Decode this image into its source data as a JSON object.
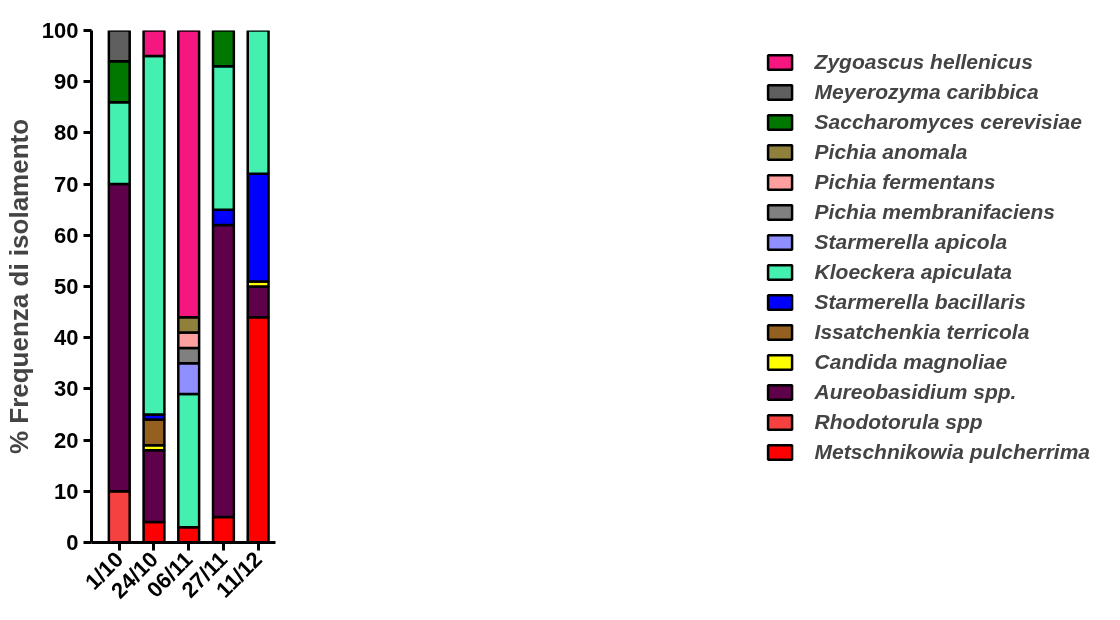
{
  "chart_data": {
    "type": "bar",
    "stacked": true,
    "ylabel": "% Frequenza di isolamento",
    "categories": [
      "1/10",
      "24/10",
      "06/11",
      "27/11",
      "11/12"
    ],
    "ylim": [
      0,
      100
    ],
    "yticks": [
      0,
      10,
      20,
      30,
      40,
      50,
      60,
      70,
      80,
      90,
      100
    ],
    "grid": false,
    "legend": "right",
    "series": [
      {
        "name": "Metschnikowia pulcherrima",
        "color": "#ff0000",
        "values": [
          null,
          4,
          3,
          5,
          44
        ]
      },
      {
        "name": "Rhodotorula spp",
        "color": "#f5413f",
        "values": [
          10,
          null,
          null,
          null,
          null
        ]
      },
      {
        "name": "Aureobasidium spp.",
        "color": "#5f004a",
        "values": [
          60,
          14,
          null,
          57,
          6
        ]
      },
      {
        "name": "Candida magnoliae",
        "color": "#ffff00",
        "values": [
          null,
          1,
          null,
          null,
          1
        ]
      },
      {
        "name": "Issatchenkia terricola",
        "color": "#936020",
        "values": [
          null,
          5,
          null,
          null,
          null
        ]
      },
      {
        "name": "Starmerella bacillaris",
        "color": "#0000ff",
        "values": [
          null,
          1,
          null,
          3,
          21
        ]
      },
      {
        "name": "Kloeckera apiculata",
        "color": "#44f0b0",
        "values": [
          16,
          70,
          26,
          28,
          28
        ]
      },
      {
        "name": "Starmerella apicola",
        "color": "#8f8fff",
        "values": [
          null,
          null,
          6,
          null,
          null
        ]
      },
      {
        "name": "Pichia membranifaciens",
        "color": "#808080",
        "values": [
          null,
          null,
          3,
          null,
          null
        ]
      },
      {
        "name": "Pichia fermentans",
        "color": "#ffa0a0",
        "values": [
          null,
          null,
          3,
          null,
          null
        ]
      },
      {
        "name": "Pichia anomala",
        "color": "#8f803c",
        "values": [
          null,
          null,
          3,
          null,
          null
        ]
      },
      {
        "name": "Saccharomyces cerevisiae",
        "color": "#007800",
        "values": [
          8,
          null,
          null,
          7,
          null
        ]
      },
      {
        "name": "Meyerozyma caribbica",
        "color": "#5f5f5f",
        "values": [
          6,
          null,
          null,
          null,
          null
        ]
      },
      {
        "name": "Zygoascus hellenicus",
        "color": "#f5177f",
        "values": [
          null,
          5,
          56,
          null,
          null
        ]
      }
    ]
  }
}
